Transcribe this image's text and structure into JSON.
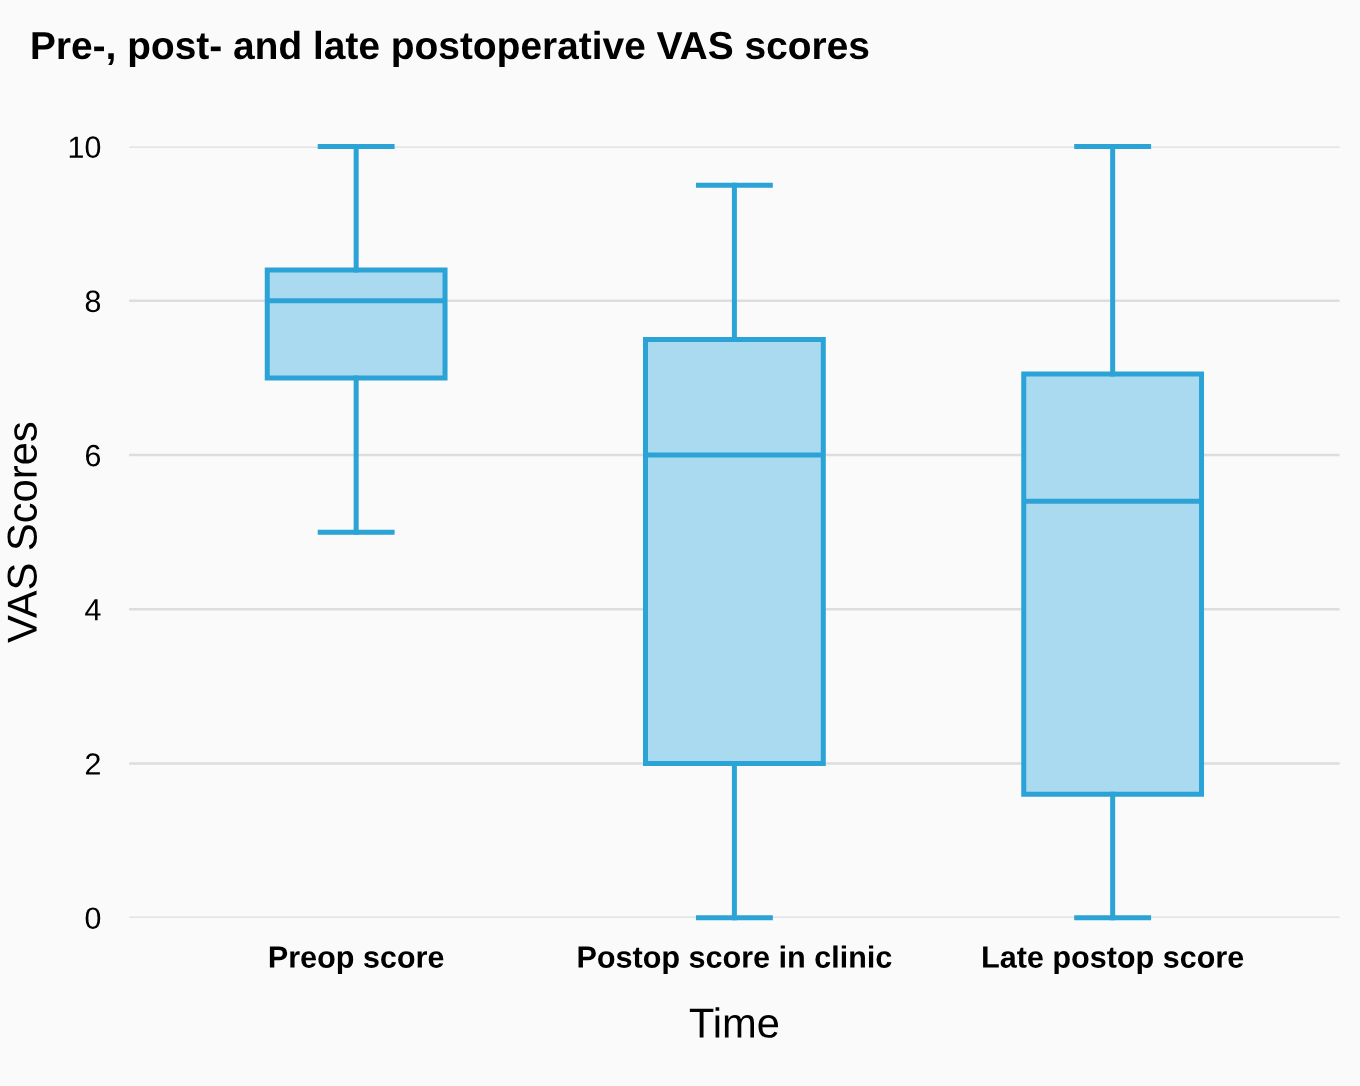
{
  "chart_data": {
    "type": "box",
    "title": "Pre-, post- and late postoperative VAS scores",
    "xlabel": "Time",
    "ylabel": "VAS Scores",
    "categories": [
      "Preop score",
      "Postop score in clinic",
      "Late postop score"
    ],
    "series": [
      {
        "color": "#2ba3d6",
        "boxes": [
          {
            "low": 5,
            "q1": 7,
            "median": 8,
            "q3": 8.4,
            "high": 10
          },
          {
            "low": 0,
            "q1": 2,
            "median": 6,
            "q3": 7.5,
            "high": 9.5
          },
          {
            "low": 0,
            "q1": 1.6,
            "median": 5.4,
            "q3": 7.05,
            "high": 10
          }
        ]
      }
    ],
    "ylim": [
      0,
      10
    ],
    "yticks": [
      0,
      2,
      4,
      6,
      8,
      10
    ],
    "grid": "y"
  }
}
